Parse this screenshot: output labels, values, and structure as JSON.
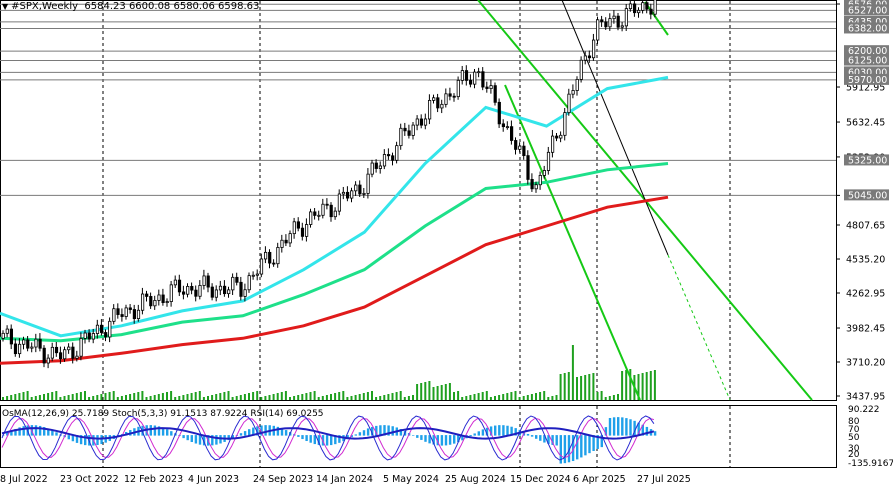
{
  "header": {
    "symbol": "#SPX,Weekly",
    "ohlc": "6584.23 6600.08 6580.06 6598.63"
  },
  "colors": {
    "ema_fast": "#33e5ea",
    "ema_mid": "#1ee08a",
    "ema_slow": "#e01b1b",
    "channel": "#15c915",
    "macd_hist": "#1ea0ea",
    "macd_signal": "#1a2bd1",
    "stoch_main": "#2b2bd1",
    "stoch_signal": "#d12bd1",
    "rsi": "#1f1fbf"
  },
  "price_axis": {
    "ticks": [
      "6577.95",
      "5912.95",
      "5632.45",
      "5352.90",
      "5045.00",
      "4807.65",
      "4535.20",
      "4262.95",
      "3982.45",
      "3710.20",
      "3437.95"
    ],
    "levels": [
      "6576.00",
      "6527.00",
      "6435.00",
      "6382.00",
      "6200.00",
      "6125.00",
      "6030.00",
      "5970.00",
      "5325.00",
      "5045.00"
    ]
  },
  "indicator": {
    "label": "OsMA(12,26,9) 25.7189  Stoch(5,3,3) 91.1513 87.9224  RSI(14) 69.0255",
    "ticks": [
      "90.222",
      "80",
      "70",
      "50",
      "30",
      "20",
      "-135.9167"
    ]
  },
  "time_axis": [
    "8 Jul 2022",
    "23 Oct 2022",
    "12 Feb 2023",
    "4 Jun 2023",
    "24 Sep 2023",
    "14 Jan 2024",
    "5 May 2024",
    "25 Aug 2024",
    "15 Dec 2024",
    "6 Apr 2025",
    "27 Jul 2025"
  ],
  "chart_data": {
    "type": "candlestick",
    "title": "#SPX,Weekly",
    "timeframe": "Weekly",
    "last_bar": {
      "open": 6584.23,
      "high": 6600.08,
      "low": 6580.06,
      "close": 6598.63
    },
    "ylim": [
      3437.95,
      6577.95
    ],
    "x": [
      "Jul 2022",
      "Oct 2022",
      "Feb 2023",
      "Jun 2023",
      "Sep 2023",
      "Jan 2024",
      "May 2024",
      "Aug 2024",
      "Dec 2024",
      "Apr 2025",
      "Jul 2025",
      "Sep 2025"
    ],
    "series": [
      {
        "name": "Close",
        "values": [
          3900,
          3750,
          4100,
          4300,
          4300,
          4800,
          5100,
          5650,
          6050,
          5100,
          6380,
          6598.63
        ]
      },
      {
        "name": "EMA fast",
        "values": [
          4100,
          3920,
          4000,
          4120,
          4200,
          4450,
          4750,
          5300,
          5750,
          5600,
          5900,
          5990
        ]
      },
      {
        "name": "EMA mid",
        "values": [
          3900,
          3880,
          3930,
          4030,
          4080,
          4250,
          4450,
          4800,
          5100,
          5150,
          5250,
          5300
        ]
      },
      {
        "name": "EMA slow",
        "values": [
          3700,
          3720,
          3780,
          3850,
          3900,
          4000,
          4150,
          4400,
          4650,
          4800,
          4950,
          5030
        ]
      }
    ],
    "levels": [
      6576.0,
      6527.0,
      6435.0,
      6382.0,
      6200.0,
      6125.0,
      6030.0,
      5970.0,
      5325.0,
      5045.0
    ]
  }
}
